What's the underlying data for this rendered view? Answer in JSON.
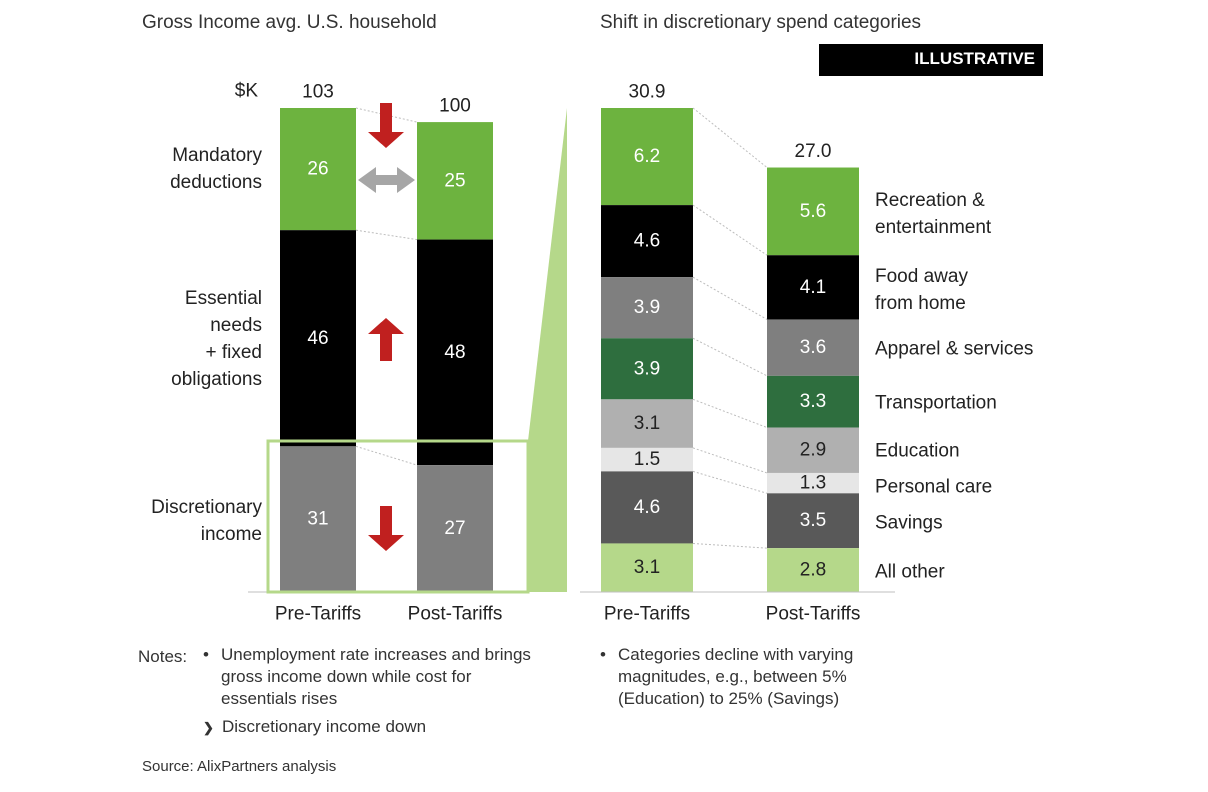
{
  "badge": "ILLUSTRATIVE",
  "chart_data": [
    {
      "type": "bar",
      "stacked": true,
      "title": "Gross Income avg. U.S. household",
      "unit_label": "$K",
      "categories": [
        "Pre-Tariffs",
        "Post-Tariffs"
      ],
      "totals": [
        "103",
        "100"
      ],
      "series": [
        {
          "name": "Mandatory deductions",
          "values": [
            26,
            25
          ],
          "labels": [
            "26",
            "25"
          ],
          "color": "#6db33f",
          "label_color": "#ffffff"
        },
        {
          "name": "Essential needs + fixed obligations",
          "values": [
            46,
            48
          ],
          "labels": [
            "46",
            "48"
          ],
          "color": "#000000",
          "label_color": "#ffffff"
        },
        {
          "name": "Discretionary income",
          "values": [
            31,
            27
          ],
          "labels": [
            "31",
            "27"
          ],
          "color": "#7f7f7f",
          "label_color": "#ffffff"
        }
      ],
      "row_labels": [
        [
          "Mandatory",
          "deductions"
        ],
        [
          "Essential",
          "needs",
          "+ fixed",
          "obligations"
        ],
        [
          "Discretionary",
          "income"
        ]
      ],
      "trend_arrows": [
        "down",
        "flat",
        "up",
        "down"
      ],
      "arrow_colors": {
        "red": "#c0201f",
        "gray": "#a6a6a6"
      },
      "highlight_color": "#b5d88a"
    },
    {
      "type": "bar",
      "stacked": true,
      "title": "Shift in discretionary spend categories",
      "categories": [
        "Pre-Tariffs",
        "Post-Tariffs"
      ],
      "totals": [
        "30.9",
        "27.0"
      ],
      "series": [
        {
          "name": "Recreation & entertainment",
          "values": [
            6.2,
            5.6
          ],
          "labels": [
            "6.2",
            "5.6"
          ],
          "color": "#6db33f",
          "label_color": "#ffffff"
        },
        {
          "name": "Food away from home",
          "values": [
            4.6,
            4.1
          ],
          "labels": [
            "4.6",
            "4.1"
          ],
          "color": "#000000",
          "label_color": "#ffffff"
        },
        {
          "name": "Apparel & services",
          "values": [
            3.9,
            3.6
          ],
          "labels": [
            "3.9",
            "3.6"
          ],
          "color": "#7f7f7f",
          "label_color": "#ffffff"
        },
        {
          "name": "Transportation",
          "values": [
            3.9,
            3.3
          ],
          "labels": [
            "3.9",
            "3.3"
          ],
          "color": "#2e6e3e",
          "label_color": "#ffffff"
        },
        {
          "name": "Education",
          "values": [
            3.1,
            2.9
          ],
          "labels": [
            "3.1",
            "2.9"
          ],
          "color": "#b0b0b0",
          "label_color": "#222222"
        },
        {
          "name": "Personal care",
          "values": [
            1.5,
            1.3
          ],
          "labels": [
            "1.5",
            "1.3"
          ],
          "color": "#e6e6e6",
          "label_color": "#222222"
        },
        {
          "name": "Savings",
          "values": [
            4.6,
            3.5
          ],
          "labels": [
            "4.6",
            "3.5"
          ],
          "color": "#595959",
          "label_color": "#ffffff"
        },
        {
          "name": "All other",
          "values": [
            3.1,
            2.8
          ],
          "labels": [
            "3.1",
            "2.8"
          ],
          "color": "#b5d88a",
          "label_color": "#222222"
        }
      ],
      "legend_lines": [
        [
          "Recreation &",
          "entertainment"
        ],
        [
          "Food away",
          "from home"
        ],
        [
          "Apparel & services"
        ],
        [
          "Transportation"
        ],
        [
          "Education"
        ],
        [
          "Personal care"
        ],
        [
          "Savings"
        ],
        [
          "All other"
        ]
      ]
    }
  ],
  "notes": {
    "label": "Notes:",
    "left_bullet": "•",
    "left_lines": [
      "Unemployment rate increases and brings",
      "gross income down while cost for",
      "essentials rises"
    ],
    "left_sub_marker": "❯",
    "left_sub": "Discretionary income down",
    "right_bullet": "•",
    "right_lines": [
      "Categories decline with varying",
      "magnitudes, e.g., between 5%",
      "(Education) to 25% (Savings)"
    ]
  },
  "source": "Source: AlixPartners analysis"
}
